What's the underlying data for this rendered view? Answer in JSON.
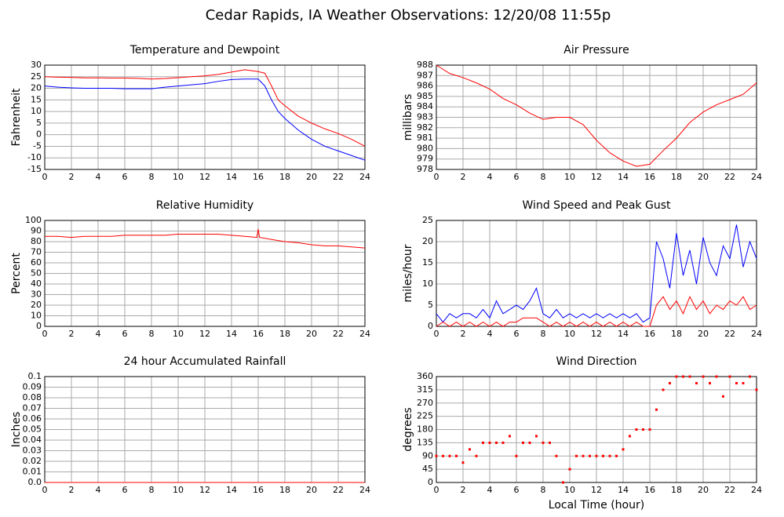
{
  "title": "Cedar Rapids, IA Weather Observations: 12/20/08 11:55p",
  "chart_data": [
    {
      "type": "line",
      "title": "Temperature and Dewpoint",
      "ylabel": "Fahrenheit",
      "x": [
        0,
        1,
        2,
        3,
        4,
        5,
        6,
        7,
        8,
        9,
        10,
        11,
        12,
        13,
        14,
        15,
        16,
        16.5,
        17,
        17.5,
        18,
        19,
        20,
        21,
        22,
        23,
        24
      ],
      "series": [
        {
          "color": "#ff0000",
          "values": [
            25,
            24.8,
            24.7,
            24.5,
            24.5,
            24.4,
            24.4,
            24.3,
            24,
            24.2,
            24.6,
            25,
            25.4,
            26,
            27,
            28,
            27.2,
            26.5,
            21,
            15,
            12.5,
            8,
            5,
            2.5,
            0.5,
            -2,
            -5
          ]
        },
        {
          "color": "#0000ff",
          "values": [
            21,
            20.5,
            20.2,
            20,
            20,
            20,
            19.8,
            19.8,
            19.8,
            20.5,
            21,
            21.5,
            22,
            23,
            23.8,
            24,
            24,
            21,
            15,
            10,
            7,
            2,
            -2,
            -5,
            -7,
            -9,
            -11
          ]
        }
      ],
      "xlim": [
        0,
        24
      ],
      "xticks": [
        0,
        2,
        4,
        6,
        8,
        10,
        12,
        14,
        16,
        18,
        20,
        22,
        24
      ],
      "ylim": [
        -15,
        30
      ],
      "yticks": [
        -15,
        -10,
        -5,
        0,
        5,
        10,
        15,
        20,
        25,
        30
      ],
      "grid": true
    },
    {
      "type": "line",
      "title": "Air Pressure",
      "ylabel": "millibars",
      "x": [
        0,
        1,
        2,
        3,
        4,
        5,
        6,
        7,
        8,
        9,
        10,
        11,
        12,
        13,
        14,
        15,
        16,
        17,
        18,
        19,
        20,
        21,
        22,
        23,
        24
      ],
      "series": [
        {
          "color": "#ff0000",
          "values": [
            988,
            987.2,
            986.8,
            986.3,
            985.7,
            984.8,
            984.2,
            983.4,
            982.8,
            983,
            983,
            982.3,
            980.8,
            979.6,
            978.8,
            978.3,
            978.5,
            979.8,
            981,
            982.5,
            983.5,
            984.2,
            984.7,
            985.2,
            986.3
          ]
        }
      ],
      "xlim": [
        0,
        24
      ],
      "xticks": [
        0,
        2,
        4,
        6,
        8,
        10,
        12,
        14,
        16,
        18,
        20,
        22,
        24
      ],
      "ylim": [
        978,
        988
      ],
      "yticks": [
        978,
        979,
        980,
        981,
        982,
        983,
        984,
        985,
        986,
        987,
        988
      ],
      "grid": true
    },
    {
      "type": "line",
      "title": "Relative Humidity",
      "ylabel": "Percent",
      "x": [
        0,
        1,
        2,
        3,
        4,
        5,
        6,
        7,
        8,
        9,
        10,
        11,
        12,
        13,
        14,
        15,
        15.9,
        16,
        16.1,
        17,
        18,
        19,
        20,
        21,
        22,
        23,
        24
      ],
      "series": [
        {
          "color": "#ff0000",
          "values": [
            85,
            85,
            84,
            85,
            85,
            85,
            86,
            86,
            86,
            86,
            87,
            87,
            87,
            87,
            86,
            85,
            84,
            92,
            84,
            82,
            80,
            79,
            77,
            76,
            76,
            75,
            74
          ]
        }
      ],
      "xlim": [
        0,
        24
      ],
      "xticks": [
        0,
        2,
        4,
        6,
        8,
        10,
        12,
        14,
        16,
        18,
        20,
        22,
        24
      ],
      "ylim": [
        0,
        100
      ],
      "yticks": [
        0,
        10,
        20,
        30,
        40,
        50,
        60,
        70,
        80,
        90,
        100
      ],
      "grid": true
    },
    {
      "type": "line",
      "title": "Wind Speed and Peak Gust",
      "ylabel": "miles/hour",
      "x": [
        0,
        0.5,
        1,
        1.5,
        2,
        2.5,
        3,
        3.5,
        4,
        4.5,
        5,
        5.5,
        6,
        6.5,
        7,
        7.5,
        8,
        8.5,
        9,
        9.5,
        10,
        10.5,
        11,
        11.5,
        12,
        12.5,
        13,
        13.5,
        14,
        14.5,
        15,
        15.5,
        16,
        16.5,
        17,
        17.5,
        18,
        18.5,
        19,
        19.5,
        20,
        20.5,
        21,
        21.5,
        22,
        22.5,
        23,
        23.5,
        24
      ],
      "series": [
        {
          "color": "#0000ff",
          "values": [
            3,
            1,
            3,
            2,
            3,
            3,
            2,
            4,
            2,
            6,
            3,
            4,
            5,
            4,
            6,
            9,
            3,
            2,
            4,
            2,
            3,
            2,
            3,
            2,
            3,
            2,
            3,
            2,
            3,
            2,
            3,
            1,
            2,
            20,
            16,
            9,
            22,
            12,
            18,
            10,
            21,
            15,
            12,
            19,
            16,
            24,
            14,
            20,
            16
          ]
        },
        {
          "color": "#ff0000",
          "values": [
            0,
            1,
            0,
            1,
            0,
            1,
            0,
            1,
            0,
            1,
            0,
            1,
            1,
            2,
            2,
            2,
            1,
            0,
            1,
            0,
            1,
            0,
            1,
            0,
            1,
            0,
            1,
            0,
            1,
            0,
            1,
            0,
            0,
            5,
            7,
            4,
            6,
            3,
            7,
            4,
            6,
            3,
            5,
            4,
            6,
            5,
            7,
            4,
            5
          ]
        }
      ],
      "xlim": [
        0,
        24
      ],
      "xticks": [
        0,
        2,
        4,
        6,
        8,
        10,
        12,
        14,
        16,
        18,
        20,
        22,
        24
      ],
      "ylim": [
        0,
        25
      ],
      "yticks": [
        0,
        5,
        10,
        15,
        20,
        25
      ],
      "grid": true
    },
    {
      "type": "line",
      "title": "24 hour Accumulated Rainfall",
      "ylabel": "Inches",
      "x": [
        0,
        24
      ],
      "series": [
        {
          "color": "#ff0000",
          "values": [
            0,
            0
          ]
        }
      ],
      "xlim": [
        0,
        24
      ],
      "xticks": [
        0,
        2,
        4,
        6,
        8,
        10,
        12,
        14,
        16,
        18,
        20,
        22,
        24
      ],
      "ylim": [
        0,
        0.1
      ],
      "yticks": [
        {
          "value": 0,
          "label": "0.0"
        },
        0.01,
        0.02,
        0.03,
        0.04,
        0.05,
        0.06,
        0.07,
        0.08,
        0.09,
        0.1
      ],
      "grid": true
    },
    {
      "type": "scatter",
      "title": "Wind Direction",
      "ylabel": "degrees",
      "xlabel": "Local Time (hour)",
      "x": [
        0,
        0.5,
        1,
        1.5,
        2,
        2.5,
        3,
        3.5,
        4,
        4.5,
        5,
        5.5,
        6,
        6.5,
        7,
        7.5,
        8,
        8.5,
        9,
        9.5,
        10,
        10.5,
        11,
        11.5,
        12,
        12.5,
        13,
        13.5,
        14,
        14.5,
        15,
        15.5,
        16,
        16.5,
        17,
        17.5,
        18,
        18.5,
        19,
        19.5,
        20,
        20.5,
        21,
        21.5,
        22,
        22.5,
        23,
        23.5,
        24
      ],
      "color": "#ff0000",
      "values": [
        90,
        90,
        90,
        90,
        67.5,
        112.5,
        90,
        135,
        135,
        135,
        135,
        157.5,
        90,
        135,
        135,
        157.5,
        135,
        135,
        90,
        0,
        45,
        90,
        90,
        90,
        90,
        90,
        90,
        90,
        112.5,
        157.5,
        180,
        180,
        180,
        247.5,
        315,
        337.5,
        360,
        360,
        360,
        337.5,
        360,
        337.5,
        360,
        292.5,
        360,
        337.5,
        337.5,
        360,
        315
      ],
      "xlim": [
        0,
        24
      ],
      "xticks": [
        0,
        2,
        4,
        6,
        8,
        10,
        12,
        14,
        16,
        18,
        20,
        22,
        24
      ],
      "ylim": [
        0,
        360
      ],
      "yticks": [
        0,
        45,
        90,
        135,
        180,
        225,
        270,
        315,
        360
      ],
      "grid": true
    }
  ]
}
